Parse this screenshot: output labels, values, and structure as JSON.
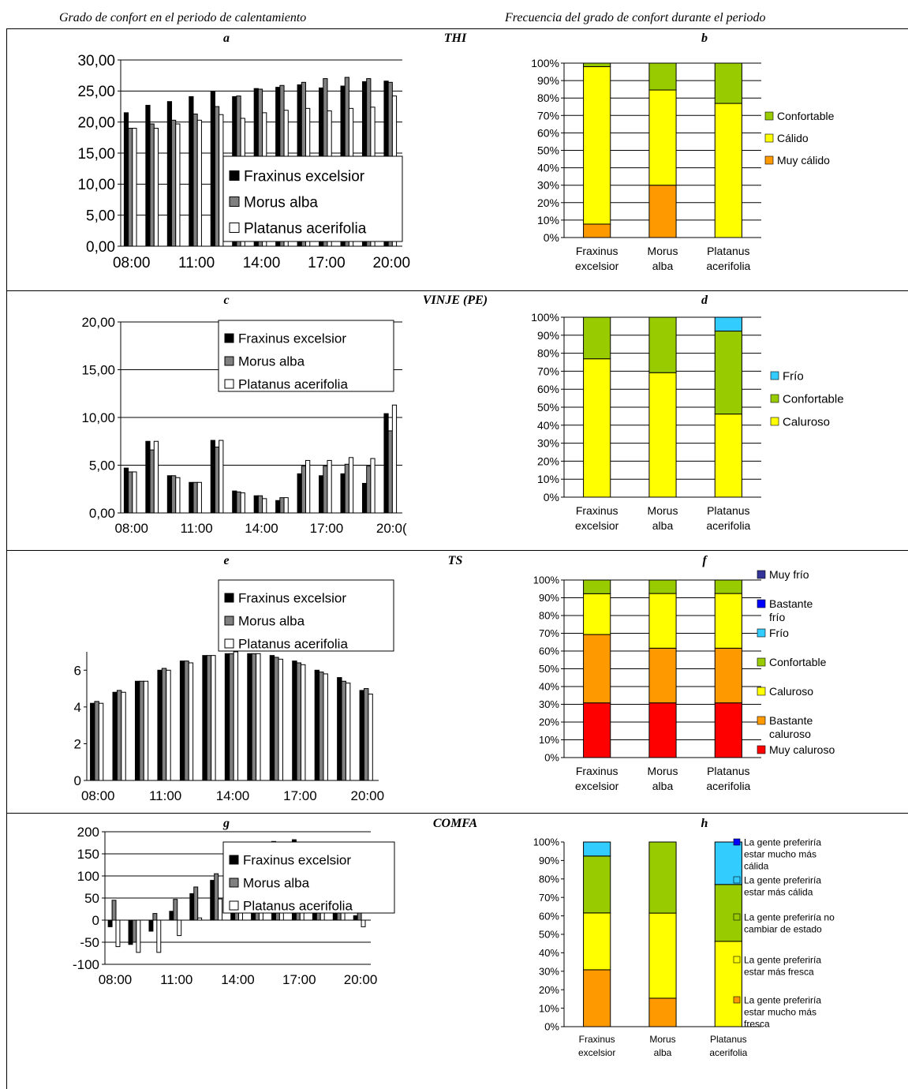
{
  "headers": {
    "left": "Grado de confort en el periodo de calentamiento",
    "right": "Frecuencia del grado de confort durante el periodo"
  },
  "colors": {
    "fraxinus": "#000000",
    "morus": "#808080",
    "platanus": "#ffffff",
    "muy_caluroso": "#ff0000",
    "naranja": "#ff9900",
    "amarillo": "#ffff00",
    "verde": "#99cc00",
    "celeste": "#33ccff",
    "azul": "#0000ff",
    "azul_oscuro": "#333399"
  },
  "rows": [
    {
      "index": "THI",
      "left_label": "a",
      "right_label": "b"
    },
    {
      "index": "VINJE (PE)",
      "left_label": "c",
      "right_label": "d"
    },
    {
      "index": "TS",
      "left_label": "e",
      "right_label": "f"
    },
    {
      "index": "COMFA",
      "left_label": "g",
      "right_label": "h"
    }
  ],
  "chart_data": [
    {
      "id": "a",
      "type": "bar",
      "categories": [
        "08:00",
        "09:00",
        "10:00",
        "11:00",
        "12:00",
        "13:00",
        "14:00",
        "15:00",
        "16:00",
        "17:00",
        "18:00",
        "19:00",
        "20:00"
      ],
      "x_tick_labels": [
        "08:00",
        "11:00",
        "14:00",
        "17:00",
        "20:00"
      ],
      "y_tick_labels": [
        "0,00",
        "5,00",
        "10,00",
        "15,00",
        "20,00",
        "25,00",
        "30,00"
      ],
      "ylim": [
        0,
        30
      ],
      "yticks": [
        0,
        5,
        10,
        15,
        20,
        25,
        30
      ],
      "grid": true,
      "legend": "bottom-right",
      "series": [
        {
          "name": "Fraxinus excelsior",
          "values": [
            21.5,
            22.7,
            23.3,
            24.1,
            24.9,
            24.1,
            25.4,
            25.6,
            26.0,
            25.5,
            25.8,
            26.5,
            26.6
          ]
        },
        {
          "name": "Morus alba",
          "values": [
            19.0,
            19.7,
            20.3,
            21.3,
            22.5,
            24.2,
            25.3,
            25.9,
            26.4,
            27.0,
            27.2,
            27.0,
            26.4
          ]
        },
        {
          "name": "Platanus acerifolia",
          "values": [
            19.0,
            19.0,
            19.7,
            20.3,
            21.2,
            20.6,
            21.5,
            21.9,
            22.2,
            21.8,
            22.2,
            22.4,
            24.2
          ]
        }
      ]
    },
    {
      "id": "b",
      "type": "bar",
      "stacked": true,
      "categories": [
        [
          "Fraxinus",
          "excelsior"
        ],
        [
          "Morus",
          "alba"
        ],
        [
          "Platanus",
          "acerifolia"
        ]
      ],
      "y_tick_labels": [
        "0%",
        "10%",
        "20%",
        "30%",
        "40%",
        "50%",
        "60%",
        "70%",
        "80%",
        "90%",
        "100%"
      ],
      "ylim": [
        0,
        100
      ],
      "grid": true,
      "legend": "right",
      "series": [
        {
          "name": "Muy cálido",
          "color_key": "naranja",
          "values": [
            7.7,
            30.0,
            0
          ]
        },
        {
          "name": "Cálido",
          "color_key": "amarillo",
          "values": [
            90.3,
            54.6,
            76.9
          ]
        },
        {
          "name": "Confortable",
          "color_key": "verde",
          "values": [
            2.0,
            15.4,
            23.1
          ]
        }
      ]
    },
    {
      "id": "c",
      "type": "bar",
      "categories": [
        "08:00",
        "09:00",
        "10:00",
        "11:00",
        "12:00",
        "13:00",
        "14:00",
        "15:00",
        "16:00",
        "17:00",
        "18:00",
        "19:00",
        "20:00"
      ],
      "x_tick_labels": [
        "08:00",
        "11:00",
        "14:00",
        "17:00",
        "20:0("
      ],
      "y_tick_labels": [
        "0,00",
        "5,00",
        "10,00",
        "15,00",
        "20,00"
      ],
      "ylim": [
        0,
        20
      ],
      "yticks": [
        0,
        5,
        10,
        15,
        20
      ],
      "grid": true,
      "legend": "top-right",
      "series": [
        {
          "name": "Fraxinus excelsior",
          "values": [
            4.7,
            7.5,
            3.9,
            3.2,
            7.6,
            2.3,
            1.8,
            1.3,
            4.1,
            3.9,
            4.1,
            3.1,
            10.4
          ]
        },
        {
          "name": "Morus alba",
          "values": [
            4.3,
            6.6,
            3.9,
            3.2,
            6.9,
            2.2,
            1.8,
            1.6,
            4.9,
            4.9,
            5.1,
            4.9,
            8.6
          ]
        },
        {
          "name": "Platanus acerifolia",
          "values": [
            4.3,
            7.5,
            3.7,
            3.2,
            7.6,
            2.1,
            1.5,
            1.6,
            5.5,
            5.5,
            5.8,
            5.7,
            11.3
          ]
        }
      ]
    },
    {
      "id": "d",
      "type": "bar",
      "stacked": true,
      "categories": [
        [
          "Fraxinus",
          "excelsior"
        ],
        [
          "Morus",
          "alba"
        ],
        [
          "Platanus",
          "acerifolia"
        ]
      ],
      "y_tick_labels": [
        "0%",
        "10%",
        "20%",
        "30%",
        "40%",
        "50%",
        "60%",
        "70%",
        "80%",
        "90%",
        "100%"
      ],
      "ylim": [
        0,
        100
      ],
      "grid": true,
      "legend": "right",
      "series": [
        {
          "name": "Caluroso",
          "color_key": "amarillo",
          "values": [
            76.9,
            69.2,
            46.2
          ]
        },
        {
          "name": "Confortable",
          "color_key": "verde",
          "values": [
            23.1,
            30.8,
            46.1
          ]
        },
        {
          "name": "Frío",
          "color_key": "celeste",
          "values": [
            0,
            0,
            7.7
          ]
        }
      ]
    },
    {
      "id": "e",
      "type": "bar",
      "categories": [
        "08:00",
        "09:00",
        "10:00",
        "11:00",
        "12:00",
        "13:00",
        "14:00",
        "15:00",
        "16:00",
        "17:00",
        "18:00",
        "19:00",
        "20:00"
      ],
      "x_tick_labels": [
        "08:00",
        "11:00",
        "14:00",
        "17:00",
        "20:00"
      ],
      "y_tick_labels": [
        "0",
        "2",
        "4",
        "6"
      ],
      "ylim": [
        0,
        7
      ],
      "yticks": [
        0,
        2,
        4,
        6
      ],
      "grid": false,
      "legend": "top-right",
      "series": [
        {
          "name": "Fraxinus excelsior",
          "values": [
            4.2,
            4.8,
            5.4,
            6.0,
            6.5,
            6.8,
            6.9,
            6.9,
            6.8,
            6.5,
            6.0,
            5.6,
            4.9
          ]
        },
        {
          "name": "Morus alba",
          "values": [
            4.3,
            4.9,
            5.4,
            6.1,
            6.5,
            6.8,
            6.9,
            6.9,
            6.7,
            6.4,
            5.9,
            5.4,
            5.0
          ]
        },
        {
          "name": "Platanus acerifolia",
          "values": [
            4.2,
            4.8,
            5.4,
            6.0,
            6.4,
            6.8,
            7.0,
            6.9,
            6.6,
            6.3,
            5.8,
            5.3,
            4.7
          ]
        }
      ]
    },
    {
      "id": "f",
      "type": "bar",
      "stacked": true,
      "categories": [
        [
          "Fraxinus",
          "excelsior"
        ],
        [
          "Morus",
          "alba"
        ],
        [
          "Platanus",
          "acerifolia"
        ]
      ],
      "y_tick_labels": [
        "0%",
        "10%",
        "20%",
        "30%",
        "40%",
        "50%",
        "60%",
        "70%",
        "80%",
        "90%",
        "100%"
      ],
      "ylim": [
        0,
        100
      ],
      "grid": true,
      "legend": "right",
      "series": [
        {
          "name": "Muy caluroso",
          "color_key": "muy_caluroso",
          "values": [
            30.8,
            30.8,
            30.8
          ]
        },
        {
          "name": "Bastante caluroso",
          "color_key": "naranja",
          "values": [
            38.5,
            30.8,
            30.8
          ]
        },
        {
          "name": "Caluroso",
          "color_key": "amarillo",
          "values": [
            23.0,
            30.8,
            30.8
          ]
        },
        {
          "name": "Confortable",
          "color_key": "verde",
          "values": [
            7.7,
            7.6,
            7.6
          ]
        },
        {
          "name": "Frío",
          "color_key": "celeste",
          "values": [
            0,
            0,
            0
          ]
        },
        {
          "name": "Bastante frío",
          "color_key": "azul",
          "values": [
            0,
            0,
            0
          ]
        },
        {
          "name": "Muy frío",
          "color_key": "azul_oscuro",
          "values": [
            0,
            0,
            0
          ]
        }
      ]
    },
    {
      "id": "g",
      "type": "bar",
      "categories": [
        "08:00",
        "09:00",
        "10:00",
        "11:00",
        "12:00",
        "13:00",
        "14:00",
        "15:00",
        "16:00",
        "17:00",
        "18:00",
        "19:00",
        "20:00"
      ],
      "x_tick_labels": [
        "08:00",
        "11:00",
        "14:00",
        "17:00",
        "20:00"
      ],
      "y_tick_labels": [
        "-100",
        "-50",
        "0",
        "50",
        "100",
        "150",
        "200"
      ],
      "ylim": [
        -100,
        200
      ],
      "yticks": [
        -100,
        -50,
        0,
        50,
        100,
        150,
        200
      ],
      "grid": true,
      "legend": "top-right",
      "series": [
        {
          "name": "Fraxinus excelsior",
          "values": [
            -15,
            -55,
            -25,
            20,
            60,
            90,
            122,
            152,
            178,
            182,
            157,
            125,
            10
          ]
        },
        {
          "name": "Morus alba",
          "values": [
            45,
            -50,
            15,
            47,
            75,
            105,
            118,
            147,
            165,
            160,
            138,
            85,
            23
          ]
        },
        {
          "name": "Platanus acerifolia",
          "values": [
            -60,
            -73,
            -73,
            -35,
            5,
            48,
            80,
            90,
            105,
            110,
            90,
            55,
            -15
          ]
        }
      ]
    },
    {
      "id": "h",
      "type": "bar",
      "stacked": true,
      "categories": [
        [
          "Fraxinus",
          "excelsior"
        ],
        [
          "Morus",
          "alba"
        ],
        [
          "Platanus",
          "acerifolia"
        ]
      ],
      "y_tick_labels": [
        "0%",
        "10%",
        "20%",
        "30%",
        "40%",
        "50%",
        "60%",
        "70%",
        "80%",
        "90%",
        "100%"
      ],
      "ylim": [
        0,
        100
      ],
      "grid": false,
      "legend": "right",
      "series": [
        {
          "name": "La gente preferiría estar mucho más fresca",
          "legend_lines": [
            "La gente preferiría",
            "estar mucho más",
            "fresca"
          ],
          "color_key": "naranja",
          "values": [
            30.8,
            15.4,
            0
          ]
        },
        {
          "name": "La gente preferiría estar más fresca",
          "legend_lines": [
            "La gente preferiría",
            "estar más fresca"
          ],
          "color_key": "amarillo",
          "values": [
            30.8,
            46.1,
            46.2
          ]
        },
        {
          "name": "La gente preferiría no cambiar de estado",
          "legend_lines": [
            "La gente preferiría no",
            "cambiar de estado"
          ],
          "color_key": "verde",
          "values": [
            30.8,
            38.5,
            30.8
          ]
        },
        {
          "name": "La gente preferiría estar más cálida",
          "legend_lines": [
            "La gente preferiría",
            "estar más cálida"
          ],
          "color_key": "celeste",
          "values": [
            7.6,
            0,
            23.0
          ]
        },
        {
          "name": "La gente preferiría estar mucho más cálida",
          "legend_lines": [
            "La gente preferiría",
            "estar mucho más",
            "cálida"
          ],
          "color_key": "azul",
          "values": [
            0,
            0,
            0
          ]
        }
      ]
    }
  ]
}
